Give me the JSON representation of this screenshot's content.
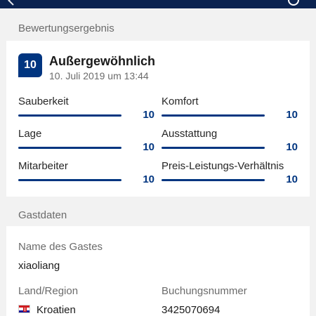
{
  "rating_section": {
    "heading": "Bewertungsergebnis",
    "score": "10",
    "verdict": "Außergewöhnlich",
    "date": "10. Juli 2019 um 13:44",
    "subscores": [
      {
        "label": "Sauberkeit",
        "value": "10",
        "fraction": 1.0
      },
      {
        "label": "Komfort",
        "value": "10",
        "fraction": 1.0
      },
      {
        "label": "Lage",
        "value": "10",
        "fraction": 1.0
      },
      {
        "label": "Ausstattung",
        "value": "10",
        "fraction": 1.0
      },
      {
        "label": "Mitarbeiter",
        "value": "10",
        "fraction": 1.0
      },
      {
        "label": "Preis-Leistungs-Verhältnis",
        "value": "10",
        "fraction": 1.0
      }
    ]
  },
  "guest_section": {
    "heading": "Gastdaten",
    "guest_name_label": "Name des Gastes",
    "guest_name": "xiaoliang",
    "country_label": "Land/Region",
    "country": "Kroatien",
    "country_flag_icon": "croatia-flag-icon",
    "booking_number_label": "Buchungsnummer",
    "booking_number": "3425070694"
  },
  "colors": {
    "brand_dark": "#0b2350",
    "accent": "#003580",
    "background": "#f2f2f2"
  }
}
